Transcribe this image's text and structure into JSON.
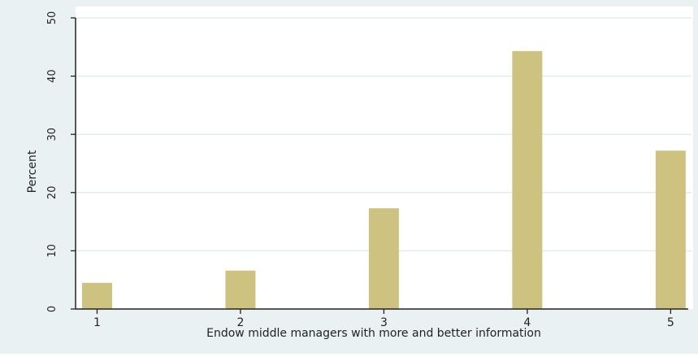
{
  "chart_data": {
    "type": "bar",
    "title": "",
    "xlabel": "Endow middle managers with more and better information",
    "ylabel": "Percent",
    "x": [
      1,
      2,
      3,
      4,
      5
    ],
    "values": [
      4.5,
      6.6,
      17.3,
      44.3,
      27.2
    ],
    "xlim": [
      0.85,
      5.1
    ],
    "ylim": [
      0,
      50
    ],
    "yticks": [
      0,
      10,
      20,
      30,
      40,
      50
    ],
    "xticks": [
      1,
      2,
      3,
      4,
      5
    ],
    "grid": true,
    "bar_color": "#cdc27f",
    "background_color": "#eaf1f3",
    "plot_background_color": "#ffffff",
    "grid_color": "#e4ecef"
  }
}
